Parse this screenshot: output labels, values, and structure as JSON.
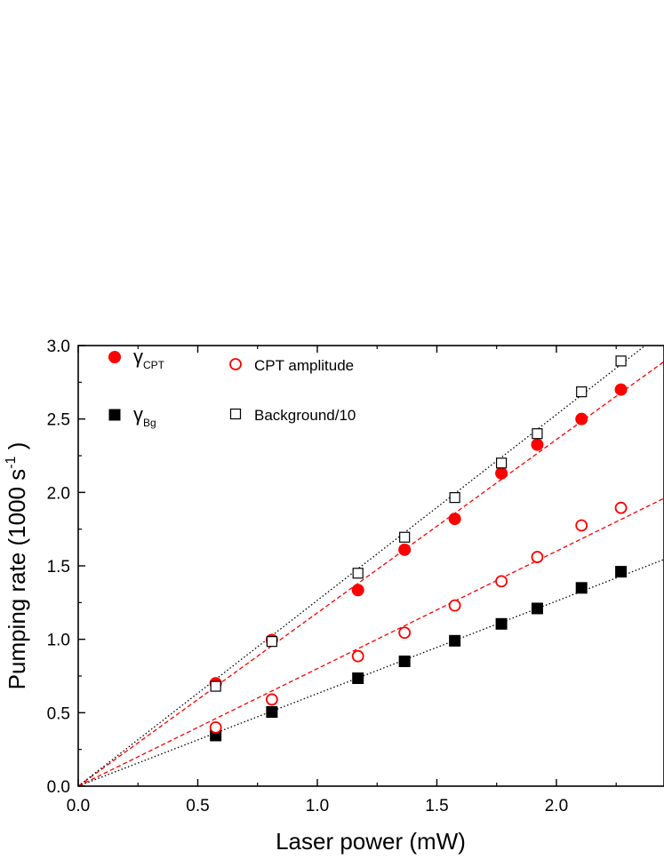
{
  "chart_data": {
    "type": "scatter",
    "xlabel": "Laser power  (mW)",
    "ylabel": {
      "main": "Pumping rate  (1000 s",
      "sup": "-1",
      "close": " )"
    },
    "xlim": [
      0.0,
      2.45
    ],
    "ylim": [
      0.0,
      3.0
    ],
    "xticks": [
      0.0,
      0.5,
      1.0,
      1.5,
      2.0
    ],
    "xtick_labels": [
      "0.0",
      "0.5",
      "1.0",
      "1.5",
      "2.0"
    ],
    "yticks": [
      0.0,
      0.5,
      1.0,
      1.5,
      2.0,
      2.5,
      3.0
    ],
    "ytick_labels": [
      "0.0",
      "0.5",
      "1.0",
      "1.5",
      "2.0",
      "2.5",
      "3.0"
    ],
    "grid": false,
    "legend_position": "top-left",
    "series": [
      {
        "name": "γCPT",
        "name_main": "γ",
        "name_sub": "CPT",
        "marker": "filled-circle",
        "color": "#ff0000",
        "x": [
          0.575,
          0.81,
          1.17,
          1.365,
          1.575,
          1.77,
          1.92,
          2.105,
          2.27
        ],
        "y": [
          0.7,
          0.995,
          1.335,
          1.61,
          1.82,
          2.13,
          2.325,
          2.5,
          2.7
        ],
        "fit": {
          "style": "dashed",
          "color": "#ff0000",
          "slope": 1.18
        }
      },
      {
        "name": "γBg",
        "name_main": "γ",
        "name_sub": "Bg",
        "marker": "filled-square",
        "color": "#000000",
        "x": [
          0.575,
          0.81,
          1.17,
          1.365,
          1.575,
          1.77,
          1.92,
          2.105,
          2.27
        ],
        "y": [
          0.345,
          0.505,
          0.735,
          0.85,
          0.99,
          1.105,
          1.21,
          1.35,
          1.46
        ],
        "fit": {
          "style": "dotted",
          "color": "#000000",
          "slope": 0.63
        }
      },
      {
        "name": "CPT amplitude",
        "marker": "open-circle",
        "color": "#ff0000",
        "x": [
          0.575,
          0.81,
          1.17,
          1.365,
          1.575,
          1.77,
          1.92,
          2.105,
          2.27
        ],
        "y": [
          0.4,
          0.59,
          0.885,
          1.045,
          1.23,
          1.395,
          1.56,
          1.775,
          1.895
        ],
        "fit": {
          "style": "dashed",
          "color": "#ff0000",
          "slope": 0.8
        }
      },
      {
        "name": "Background/10",
        "marker": "open-square",
        "color": "#000000",
        "x": [
          0.575,
          0.81,
          1.17,
          1.365,
          1.575,
          1.77,
          1.92,
          2.105,
          2.27
        ],
        "y": [
          0.68,
          0.985,
          1.45,
          1.695,
          1.965,
          2.2,
          2.4,
          2.685,
          2.895
        ],
        "fit": {
          "style": "dotted",
          "color": "#000000",
          "slope": 1.265
        }
      }
    ]
  }
}
